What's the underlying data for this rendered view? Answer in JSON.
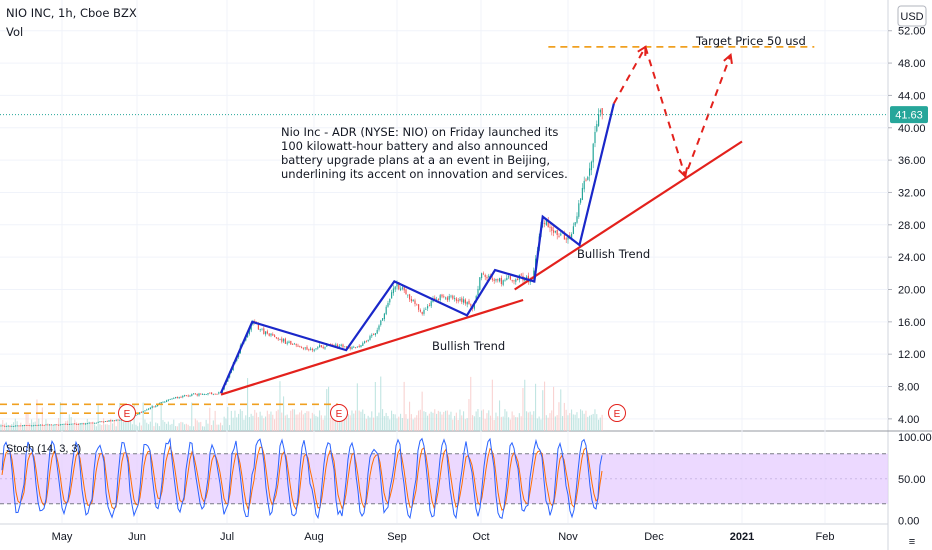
{
  "header": {
    "symbol": "NIO INC, 1h, Cboe BZX",
    "vol_label": "Vol",
    "currency": "USD",
    "menu_glyph": "≡"
  },
  "annotations": {
    "news_lines": [
      "Nio Inc - ADR (NYSE: NIO) on Friday launched its",
      "100 kilowatt-hour battery and also announced",
      "battery upgrade plans at a an event in Beijing,",
      "underlining its accent on innovation and services."
    ],
    "target_label": "Target Price 50 usd",
    "trend_label_1": "Bullish Trend",
    "trend_label_2": "Bullish Trend",
    "earnings_marker": "E"
  },
  "price_badge": "41.63",
  "stoch_label": "Stoch (14, 3, 3)",
  "colors": {
    "candle_up": "#26a69a",
    "candle_down": "#ef5350",
    "zigzag": "#1a27c9",
    "trendline": "#e3211c",
    "target_dash": "#f0a020",
    "badge": "#26a69a",
    "stoch_band": "#e6ccff",
    "stoch_k": "#2962ff",
    "stoch_d": "#ff6d00"
  },
  "chart_data": [
    {
      "type": "candlestick",
      "title": "NIO INC, 1h, Cboe BZX",
      "y_ticks": [
        4,
        8,
        12,
        16,
        20,
        24,
        28,
        32,
        36,
        40,
        44,
        48,
        52
      ],
      "y_tick_labels": [
        "4.00",
        "8.00",
        "12.00",
        "16.00",
        "20.00",
        "24.00",
        "28.00",
        "32.00",
        "36.00",
        "40.00",
        "44.00",
        "48.00",
        "52.00"
      ],
      "ylim": [
        2.5,
        55.8
      ],
      "x_labels": [
        "May",
        "Jun",
        "Jul",
        "Aug",
        "Sep",
        "Oct",
        "Nov",
        "Dec",
        "2021",
        "Feb"
      ],
      "last_price": 41.63,
      "price_path": [
        {
          "date": "2020-04-01",
          "price": 3.1
        },
        {
          "date": "2020-04-20",
          "price": 3.2
        },
        {
          "date": "2020-05-10",
          "price": 3.4
        },
        {
          "date": "2020-05-28",
          "price": 4.0
        },
        {
          "date": "2020-06-05",
          "price": 5.3
        },
        {
          "date": "2020-06-12",
          "price": 6.5
        },
        {
          "date": "2020-06-20",
          "price": 7.0
        },
        {
          "date": "2020-06-29",
          "price": 7.2
        },
        {
          "date": "2020-07-06",
          "price": 13.0
        },
        {
          "date": "2020-07-10",
          "price": 16.0
        },
        {
          "date": "2020-07-15",
          "price": 14.5
        },
        {
          "date": "2020-07-22",
          "price": 13.5
        },
        {
          "date": "2020-07-31",
          "price": 12.6
        },
        {
          "date": "2020-08-08",
          "price": 13.3
        },
        {
          "date": "2020-08-13",
          "price": 12.9
        },
        {
          "date": "2020-08-18",
          "price": 12.8
        },
        {
          "date": "2020-08-25",
          "price": 15.0
        },
        {
          "date": "2020-08-31",
          "price": 20.8
        },
        {
          "date": "2020-09-04",
          "price": 19.7
        },
        {
          "date": "2020-09-10",
          "price": 17.3
        },
        {
          "date": "2020-09-15",
          "price": 19.0
        },
        {
          "date": "2020-09-23",
          "price": 18.8
        },
        {
          "date": "2020-09-28",
          "price": 17.8
        },
        {
          "date": "2020-10-01",
          "price": 21.7
        },
        {
          "date": "2020-10-08",
          "price": 21.0
        },
        {
          "date": "2020-10-14",
          "price": 21.5
        },
        {
          "date": "2020-10-19",
          "price": 21.2
        },
        {
          "date": "2020-10-23",
          "price": 28.8
        },
        {
          "date": "2020-10-28",
          "price": 27.0
        },
        {
          "date": "2020-11-02",
          "price": 26.2
        },
        {
          "date": "2020-11-06",
          "price": 32.0
        },
        {
          "date": "2020-11-09",
          "price": 36.0
        },
        {
          "date": "2020-11-12",
          "price": 42.8
        },
        {
          "date": "2020-11-13",
          "price": 41.63
        }
      ],
      "levels": [
        {
          "name": "target",
          "value": 50.0
        },
        {
          "name": "support-upper",
          "value": 5.8
        },
        {
          "name": "support-lower",
          "value": 4.7
        }
      ],
      "zigzag": [
        {
          "date": "2020-06-29",
          "price": 7.2
        },
        {
          "date": "2020-07-10",
          "price": 16.0
        },
        {
          "date": "2020-08-13",
          "price": 12.5
        },
        {
          "date": "2020-08-31",
          "price": 21.0
        },
        {
          "date": "2020-09-26",
          "price": 16.8
        },
        {
          "date": "2020-10-06",
          "price": 22.4
        },
        {
          "date": "2020-10-20",
          "price": 21.0
        },
        {
          "date": "2020-10-23",
          "price": 29.0
        },
        {
          "date": "2020-11-05",
          "price": 25.5
        },
        {
          "date": "2020-11-17",
          "price": 43.0
        }
      ],
      "trendlines": [
        {
          "from": {
            "date": "2020-06-29",
            "price": 7.0
          },
          "to": {
            "date": "2020-10-16",
            "price": 18.7
          }
        },
        {
          "from": {
            "date": "2020-10-13",
            "price": 20.0
          },
          "to": {
            "date": "2021-01-01",
            "price": 38.3
          }
        }
      ],
      "projection": [
        {
          "date": "2020-11-17",
          "price": 43.0
        },
        {
          "date": "2020-11-28",
          "price": 50.0
        },
        {
          "date": "2020-12-12",
          "price": 34.0
        },
        {
          "date": "2020-12-28",
          "price": 49.0
        }
      ]
    },
    {
      "type": "line",
      "title": "Stoch (14, 3, 3)",
      "y_ticks": [
        0,
        50,
        100
      ],
      "y_tick_labels": [
        "0.00",
        "50.00",
        "100.00"
      ],
      "ylim": [
        -3,
        106
      ],
      "band": [
        20,
        80
      ]
    }
  ]
}
